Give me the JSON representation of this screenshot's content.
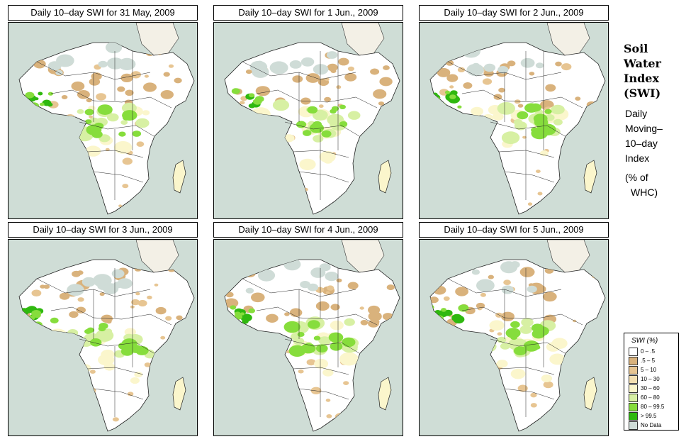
{
  "panels": [
    {
      "date_title": "Daily 10–day SWI for  31 May, 2009"
    },
    {
      "date_title": "Daily 10–day SWI for  1 Jun., 2009"
    },
    {
      "date_title": "Daily 10–day SWI for  2 Jun., 2009"
    },
    {
      "date_title": "Daily 10–day SWI for  3 Jun., 2009"
    },
    {
      "date_title": "Daily 10–day SWI for  4 Jun., 2009"
    },
    {
      "date_title": "Daily 10–day SWI for  5 Jun., 2009"
    }
  ],
  "side_panel": {
    "title_lines": [
      "Soil",
      "Water",
      "Index",
      "(SWI)"
    ],
    "desc_lines": [
      "Daily",
      "Moving–",
      "10–day",
      "Index"
    ],
    "unit_lines": [
      "(% of",
      "WHC)"
    ]
  },
  "legend": {
    "title": "SWI (%)",
    "items": [
      {
        "label": "0 – .5",
        "color": "#ffffff"
      },
      {
        "label": ".5 – 5",
        "color": "#d9b27c"
      },
      {
        "label": "5 – 10",
        "color": "#e7c592"
      },
      {
        "label": "10 – 30",
        "color": "#f3dfb1"
      },
      {
        "label": "30 – 60",
        "color": "#fbf6cc"
      },
      {
        "label": "60 – 80",
        "color": "#d7f0a3"
      },
      {
        "label": "80 – 99.5",
        "color": "#86dd3c"
      },
      {
        "label": "> 99.5",
        "color": "#2fb80f"
      },
      {
        "label": "No Data",
        "color": "#cfdcd7"
      }
    ]
  }
}
